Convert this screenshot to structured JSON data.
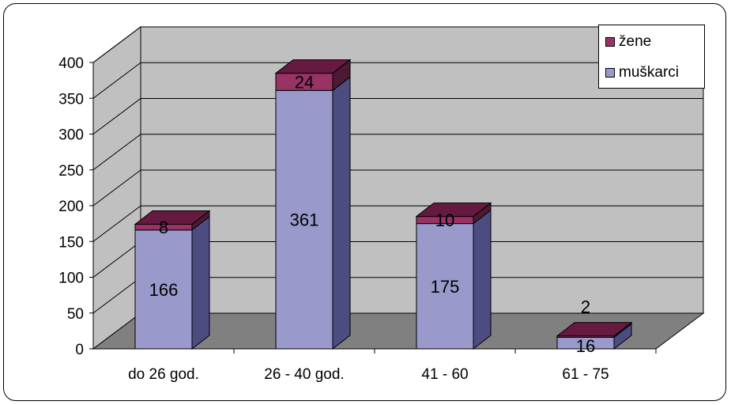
{
  "chart_data": {
    "type": "bar",
    "stacked": true,
    "three_d": true,
    "categories": [
      "do 26 god.",
      "26 - 40 god.",
      "41 - 60",
      "61 - 75"
    ],
    "series": [
      {
        "name": "muškarci",
        "values": [
          166,
          361,
          175,
          16
        ],
        "color": "#9999cc"
      },
      {
        "name": "žene",
        "values": [
          8,
          24,
          10,
          2
        ],
        "color": "#993366"
      }
    ],
    "title": "",
    "xlabel": "",
    "ylabel": "",
    "ylim": [
      0,
      400
    ],
    "yticks": [
      "0",
      "50",
      "100",
      "150",
      "200",
      "250",
      "300",
      "350",
      "400"
    ],
    "grid": true,
    "legend_position": "top-right",
    "legend_order": [
      "žene",
      "muškarci"
    ]
  }
}
